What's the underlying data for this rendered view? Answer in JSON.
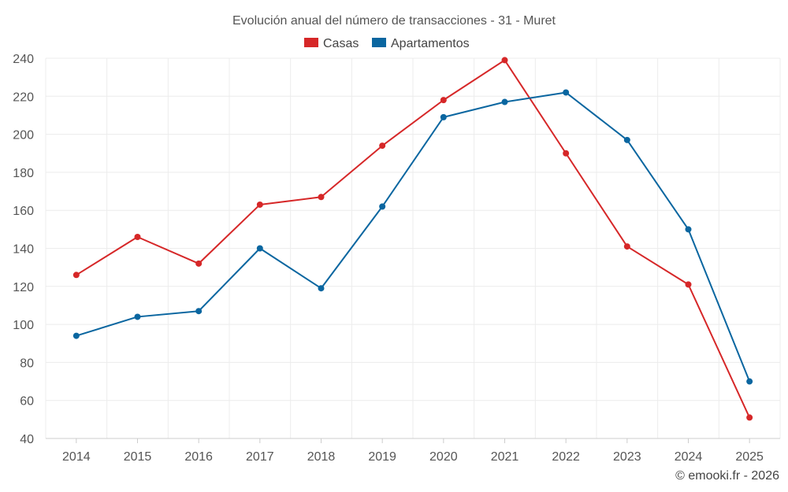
{
  "chart_data": {
    "type": "line",
    "title": "Evolución anual del número de transacciones - 31 - Muret",
    "categories": [
      "2014",
      "2015",
      "2016",
      "2017",
      "2018",
      "2019",
      "2020",
      "2021",
      "2022",
      "2023",
      "2024",
      "2025"
    ],
    "series": [
      {
        "name": "Casas",
        "color": "#d62728",
        "values": [
          126,
          146,
          132,
          163,
          167,
          194,
          218,
          239,
          190,
          141,
          121,
          51
        ]
      },
      {
        "name": "Apartamentos",
        "color": "#0a66a0",
        "values": [
          94,
          104,
          107,
          140,
          119,
          162,
          209,
          217,
          222,
          197,
          150,
          70
        ]
      }
    ],
    "ylim": [
      40,
      240
    ],
    "yticks": [
      40,
      60,
      80,
      100,
      120,
      140,
      160,
      180,
      200,
      220,
      240
    ],
    "grid": true,
    "legend_position": "top-center",
    "xlabel": "",
    "ylabel": ""
  },
  "credit": "© emooki.fr - 2026"
}
